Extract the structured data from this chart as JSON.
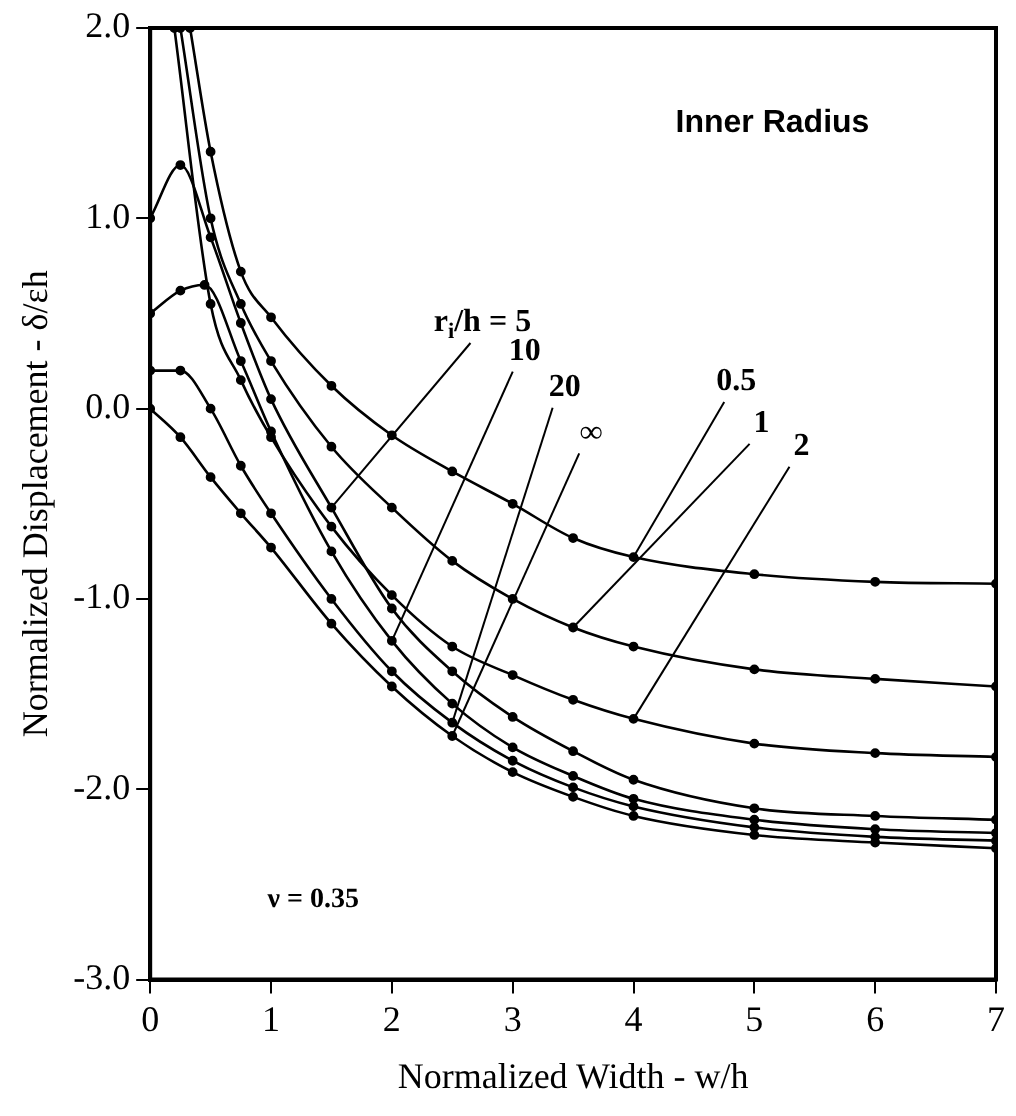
{
  "chart_data": {
    "type": "line",
    "xlabel": "Normalized Width - w/h",
    "ylabel": "Normalized Displacement - δ/εh",
    "annotations": [
      "Inner Radius",
      "ν = 0.35"
    ],
    "xlim": [
      0,
      7
    ],
    "xticks": [
      0,
      1,
      2,
      3,
      4,
      5,
      6,
      7
    ],
    "ylim": [
      -3,
      2
    ],
    "yticks": [
      {
        "value": -3,
        "label": "-3.0"
      },
      {
        "value": -2,
        "label": "-2.0"
      },
      {
        "value": -1,
        "label": "-1.0"
      },
      {
        "value": 0,
        "label": "0.0"
      },
      {
        "value": 1,
        "label": "1.0"
      },
      {
        "value": 2,
        "label": "2.0"
      }
    ],
    "marker": "circle",
    "line_style": "solid",
    "legend": false,
    "series": [
      {
        "name": "0.5",
        "color": "#000000",
        "x": [
          0.33,
          0.5,
          0.75,
          1,
          1.5,
          2,
          2.5,
          3,
          3.5,
          4,
          5,
          6,
          7
        ],
        "values": [
          2.0,
          1.35,
          0.72,
          0.48,
          0.12,
          -0.14,
          -0.33,
          -0.5,
          -0.68,
          -0.78,
          -0.87,
          -0.91,
          -0.92
        ]
      },
      {
        "name": "1",
        "color": "#000000",
        "x": [
          0.25,
          0.5,
          0.75,
          1,
          1.5,
          2,
          2.5,
          3,
          3.5,
          4,
          5,
          6,
          7
        ],
        "values": [
          2.0,
          1.0,
          0.55,
          0.25,
          -0.2,
          -0.52,
          -0.8,
          -1.0,
          -1.15,
          -1.25,
          -1.37,
          -1.42,
          -1.46
        ]
      },
      {
        "name": "2",
        "color": "#000000",
        "x": [
          0.2,
          0.5,
          0.75,
          1,
          1.5,
          2,
          2.5,
          3,
          3.5,
          4,
          5,
          6,
          7
        ],
        "values": [
          2.0,
          0.55,
          0.15,
          -0.15,
          -0.62,
          -0.98,
          -1.25,
          -1.4,
          -1.53,
          -1.63,
          -1.76,
          -1.81,
          -1.83
        ]
      },
      {
        "name": "r$_{i}$/h = 5",
        "color": "#000000",
        "x": [
          0,
          0.25,
          0.5,
          0.75,
          1,
          1.5,
          2,
          2.5,
          3,
          3.5,
          4,
          5,
          6,
          7
        ],
        "values": [
          1.0,
          1.28,
          0.9,
          0.45,
          0.05,
          -0.52,
          -1.05,
          -1.38,
          -1.62,
          -1.8,
          -1.95,
          -2.1,
          -2.14,
          -2.16
        ]
      },
      {
        "name": "10",
        "color": "#000000",
        "x": [
          0,
          0.25,
          0.45,
          0.75,
          1,
          1.5,
          2,
          2.5,
          3,
          3.5,
          4,
          5,
          6,
          7
        ],
        "values": [
          0.5,
          0.62,
          0.65,
          0.25,
          -0.12,
          -0.75,
          -1.22,
          -1.55,
          -1.78,
          -1.93,
          -2.05,
          -2.16,
          -2.21,
          -2.23
        ]
      },
      {
        "name": "20",
        "color": "#000000",
        "x": [
          0,
          0.25,
          0.5,
          0.75,
          1,
          1.5,
          2,
          2.5,
          3,
          3.5,
          4,
          5,
          6,
          7
        ],
        "values": [
          0.2,
          0.2,
          0.0,
          -0.3,
          -0.55,
          -1.0,
          -1.38,
          -1.65,
          -1.85,
          -1.99,
          -2.09,
          -2.2,
          -2.25,
          -2.27
        ]
      },
      {
        "name": "∞",
        "color": "#000000",
        "x": [
          0,
          0.25,
          0.5,
          0.75,
          1,
          1.5,
          2,
          2.5,
          3,
          3.5,
          4,
          5,
          6,
          7
        ],
        "values": [
          0,
          -0.15,
          -0.36,
          -0.55,
          -0.73,
          -1.13,
          -1.46,
          -1.72,
          -1.91,
          -2.04,
          -2.14,
          -2.24,
          -2.28,
          -2.31
        ]
      }
    ]
  }
}
